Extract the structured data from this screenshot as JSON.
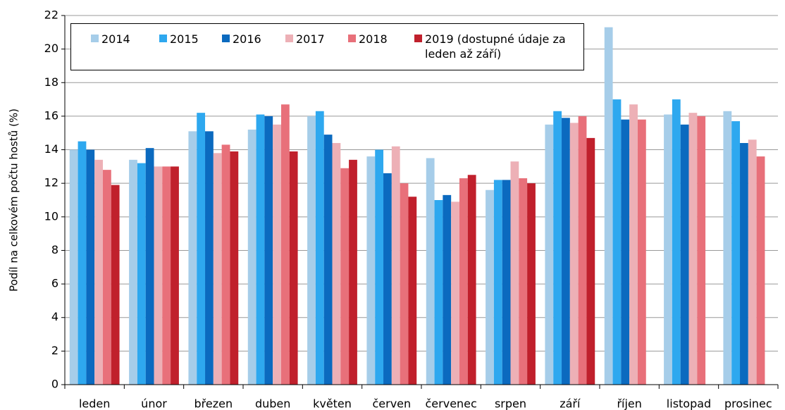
{
  "chart_data": {
    "type": "bar",
    "y_label": "Podíl na celkovém počtu hostů (%)",
    "categories": [
      "leden",
      "únor",
      "březen",
      "duben",
      "květen",
      "červen",
      "červenec",
      "srpen",
      "září",
      "říjen",
      "listopad",
      "prosinec"
    ],
    "series": [
      {
        "name": "2014",
        "color": "#a6cde9",
        "values": [
          14.0,
          13.4,
          15.1,
          15.2,
          16.0,
          13.6,
          13.5,
          11.6,
          15.5,
          21.3,
          16.1,
          16.3
        ]
      },
      {
        "name": "2015",
        "color": "#2ea8ef",
        "values": [
          14.5,
          13.2,
          16.2,
          16.1,
          16.3,
          14.0,
          11.0,
          12.2,
          16.3,
          17.0,
          17.0,
          15.7
        ]
      },
      {
        "name": "2016",
        "color": "#0b6abf",
        "values": [
          14.0,
          14.1,
          15.1,
          16.0,
          14.9,
          12.6,
          11.3,
          12.2,
          15.9,
          15.8,
          15.5,
          14.4
        ]
      },
      {
        "name": "2017",
        "color": "#edb0b6",
        "values": [
          13.4,
          13.0,
          13.8,
          15.5,
          14.4,
          14.2,
          10.9,
          13.3,
          15.6,
          16.7,
          16.2,
          14.6
        ]
      },
      {
        "name": "2018",
        "color": "#e8707a",
        "values": [
          12.8,
          13.0,
          14.3,
          16.7,
          12.9,
          12.0,
          12.3,
          12.3,
          16.0,
          15.8,
          16.0,
          13.6
        ]
      },
      {
        "name": "2019 (dostupné údaje za leden až září)",
        "color": "#c0202c",
        "values": [
          11.9,
          13.0,
          13.9,
          13.9,
          13.4,
          11.2,
          12.5,
          12.0,
          14.7,
          null,
          null,
          null
        ]
      }
    ],
    "ylim": [
      0,
      22
    ],
    "yticks": [
      0,
      2,
      4,
      6,
      8,
      10,
      12,
      14,
      16,
      18,
      20,
      22
    ],
    "grid": true
  }
}
